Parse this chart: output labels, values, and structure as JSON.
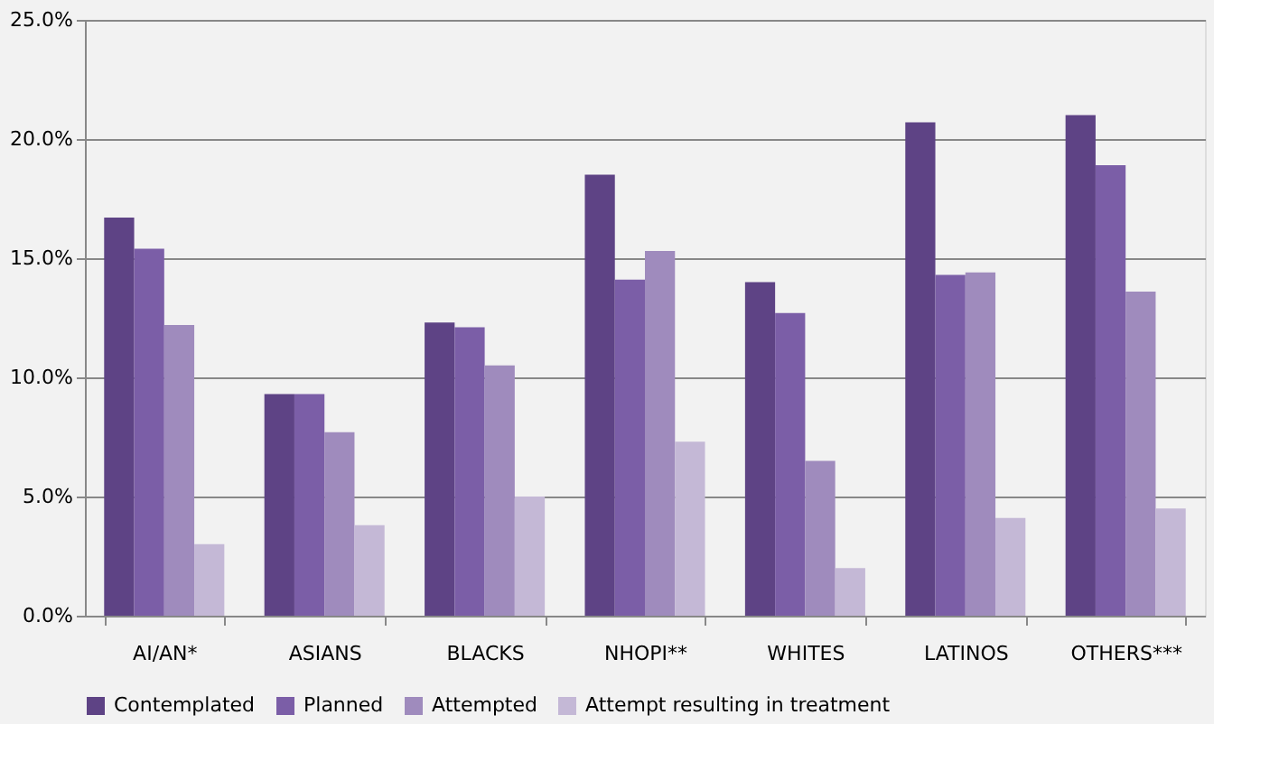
{
  "chart_data": {
    "type": "bar",
    "categories": [
      "AI/AN*",
      "ASIANS",
      "BLACKS",
      "NHOPI**",
      "WHITES",
      "LATINOS",
      "OTHERS***"
    ],
    "series": [
      {
        "name": "Contemplated",
        "color": "#5e4385",
        "values": [
          16.7,
          9.3,
          12.3,
          18.5,
          14.0,
          20.7,
          21.0
        ]
      },
      {
        "name": "Planned",
        "color": "#7b5ea7",
        "values": [
          15.4,
          9.3,
          12.1,
          14.1,
          12.7,
          14.3,
          18.9
        ]
      },
      {
        "name": "Attempted",
        "color": "#9f8bbd",
        "values": [
          12.2,
          7.7,
          10.5,
          15.3,
          6.5,
          14.4,
          13.6
        ]
      },
      {
        "name": "Attempt resulting in treatment",
        "color": "#c4b8d6",
        "values": [
          3.0,
          3.8,
          5.0,
          7.3,
          2.0,
          4.1,
          4.5
        ]
      }
    ],
    "ylim": [
      0,
      25
    ],
    "yticks": [
      {
        "value": 0,
        "label": "0.0%"
      },
      {
        "value": 5,
        "label": "5.0%"
      },
      {
        "value": 10,
        "label": "10.0%"
      },
      {
        "value": 15,
        "label": "15.0%"
      },
      {
        "value": 20,
        "label": "20.0%"
      },
      {
        "value": 25,
        "label": "25.0%"
      }
    ],
    "grid": "y",
    "legend": "bottom"
  }
}
